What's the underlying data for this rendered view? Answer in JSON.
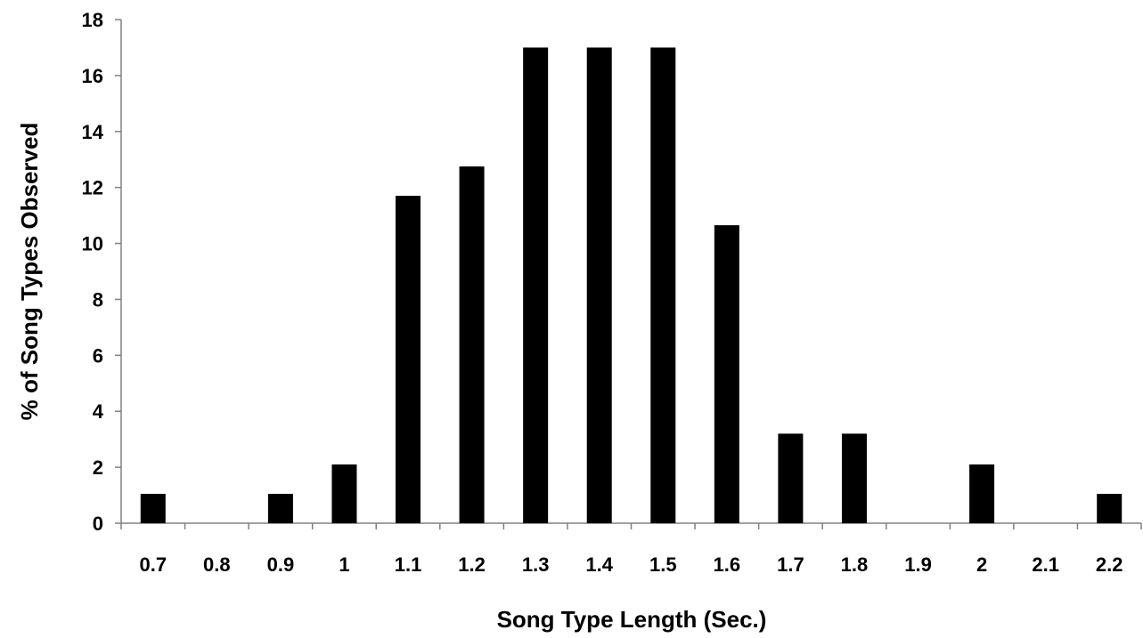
{
  "chart_data": {
    "type": "bar",
    "title": "",
    "xlabel": "Song Type Length (Sec.)",
    "ylabel": "% of Song Types Observed",
    "categories": [
      "0.7",
      "0.8",
      "0.9",
      "1",
      "1.1",
      "1.2",
      "1.3",
      "1.4",
      "1.5",
      "1.6",
      "1.7",
      "1.8",
      "1.9",
      "2",
      "2.1",
      "2.2"
    ],
    "values": [
      1.05,
      0,
      1.05,
      2.1,
      11.7,
      12.75,
      17,
      17,
      17,
      10.65,
      3.2,
      3.2,
      0,
      2.1,
      0,
      1.05
    ],
    "ylim": [
      0,
      18
    ],
    "yticks": [
      "0",
      "2",
      "4",
      "6",
      "8",
      "10",
      "12",
      "14",
      "16",
      "18"
    ],
    "grid": false,
    "legend": "none",
    "bar_color": "#000000",
    "axis_color": "#808080"
  }
}
